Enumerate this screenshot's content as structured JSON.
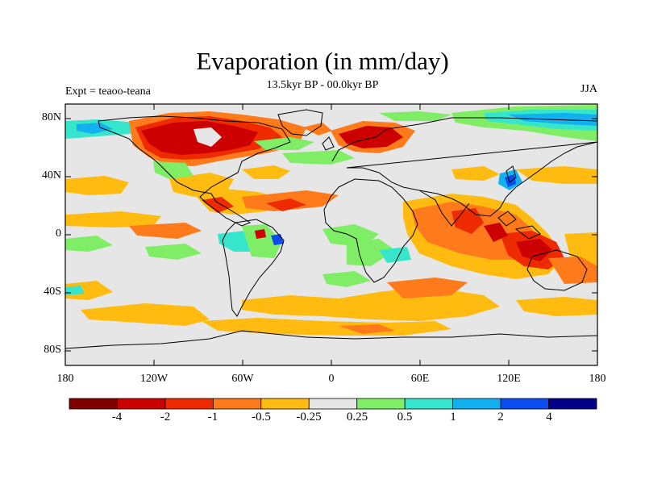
{
  "title": "Evaporation (in mm/day)",
  "subtitle": "13.5kyr BP - 00.0kyr BP",
  "left_label": "Expt = teaoo-teana",
  "right_label": "JJA",
  "lat_ticks": [
    "80N",
    "40N",
    "0",
    "40S",
    "80S"
  ],
  "lon_ticks": [
    "180",
    "120W",
    "60W",
    "0",
    "60E",
    "120E",
    "180"
  ],
  "colorbar": {
    "labels": [
      "-4",
      "-2",
      "-1",
      "-0.5",
      "-0.25",
      "0.25",
      "0.5",
      "1",
      "2",
      "4"
    ],
    "colors": [
      "#800000",
      "#cc0000",
      "#ee2a00",
      "#ff7a1a",
      "#ffbb10",
      "#e6e6e6",
      "#7fee66",
      "#36e6cc",
      "#12b0ee",
      "#0a4cf0",
      "#000088"
    ]
  }
}
